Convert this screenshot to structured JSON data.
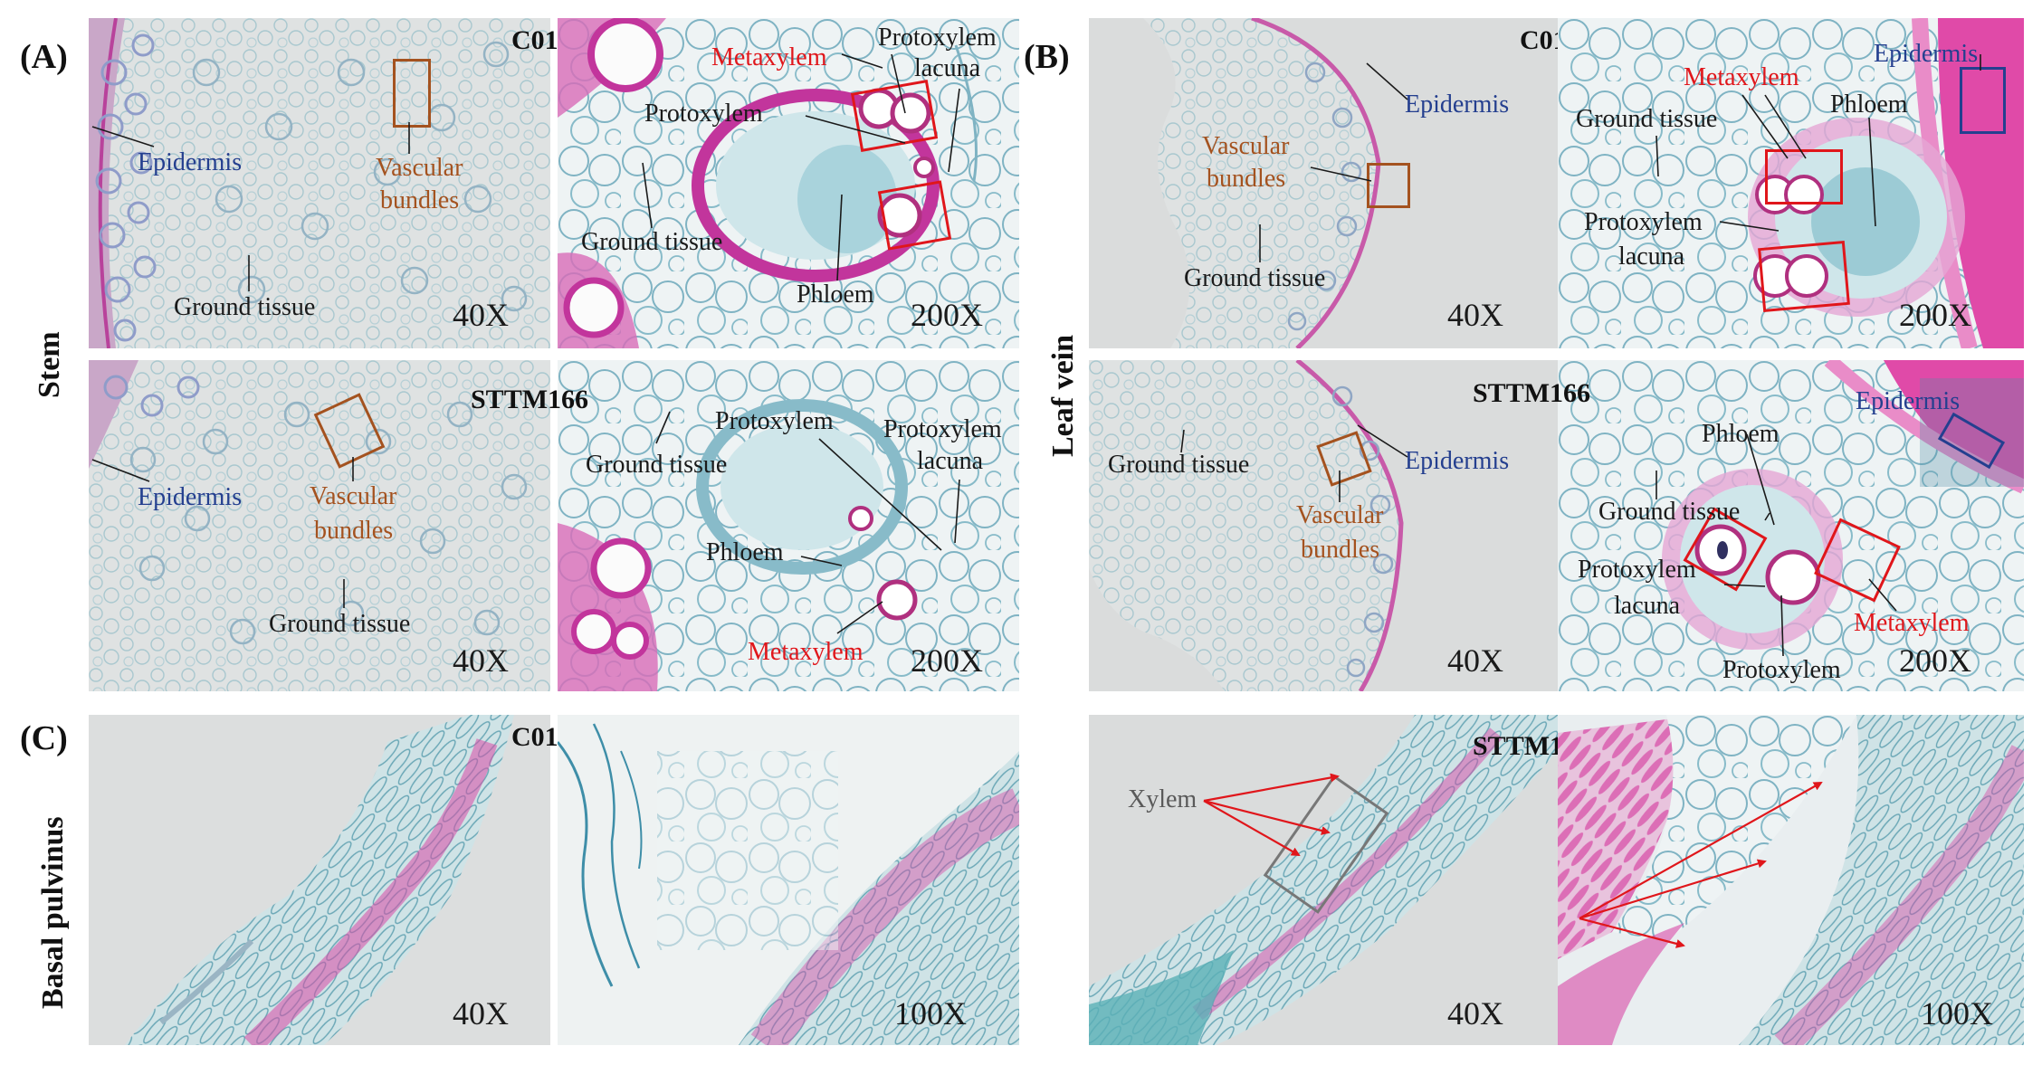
{
  "panel_letters": {
    "a": "(A)",
    "b": "(B)",
    "c": "(C)"
  },
  "row_labels": {
    "stem": "Stem",
    "leaf_vein": "Leaf vein",
    "basal_pulvinus": "Basal pulvinus"
  },
  "samples": {
    "c01": "C01",
    "sttm166": "STTM166"
  },
  "magnifications": {
    "m40": "40X",
    "m100": "100X",
    "m200": "200X"
  },
  "labels": {
    "epidermis": "Epidermis",
    "vascular": "Vascular",
    "bundles": "bundles",
    "ground_tissue": "Ground tissue",
    "metaxylem": "Metaxylem",
    "protoxylem": "Protoxylem",
    "lacuna": "lacuna",
    "phloem": "Phloem",
    "xylem": "Xylem"
  },
  "colors": {
    "epidermis_label": "#243f8f",
    "vascular_label": "#a4521f",
    "metaxylem_label": "#e0161b",
    "box_red": "#e0161b",
    "box_brown": "#a4521f",
    "box_blue": "#243f8f",
    "stain_magenta": "#d63fa4",
    "stain_teal": "#5aa8b8",
    "background_gray": "#dcdcdc"
  }
}
